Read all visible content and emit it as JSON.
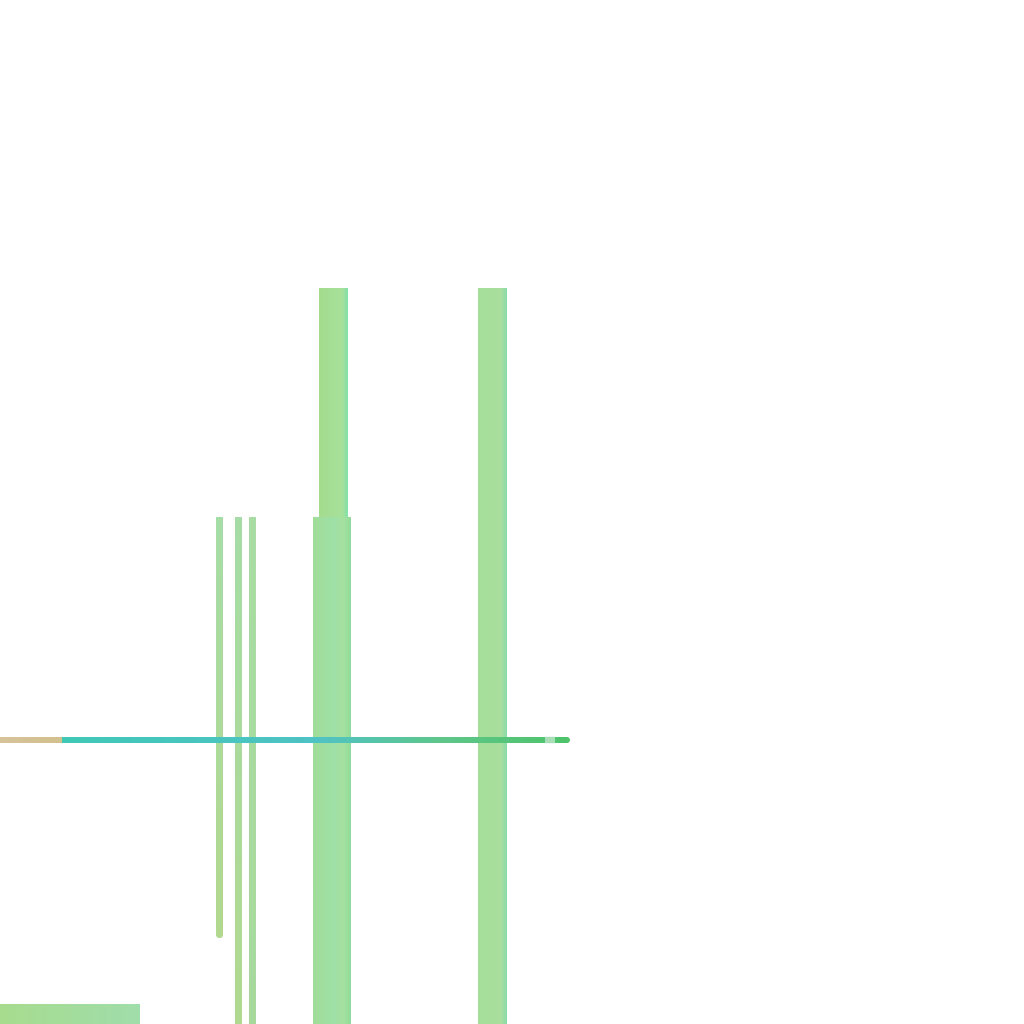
{
  "palette": {
    "background": "#ffffff",
    "teal": "#3fc8b6",
    "green": "#4dc36a",
    "light_green": "#a5de9c",
    "tan": "#d4c192"
  }
}
